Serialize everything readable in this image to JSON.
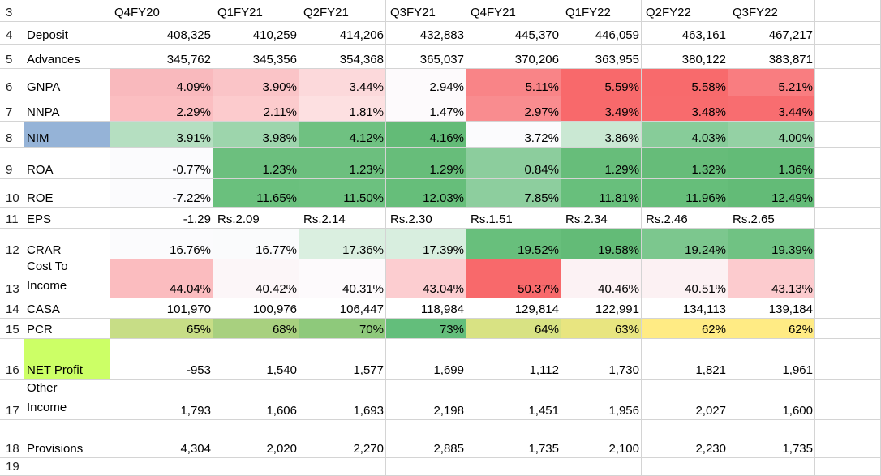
{
  "sheet": {
    "columns": [
      "Q4FY20",
      "Q1FY21",
      "Q2FY21",
      "Q3FY21",
      "Q4FY21",
      "Q1FY22",
      "Q2FY22",
      "Q3FY22"
    ],
    "header_row_number": "3",
    "last_row_number": "19",
    "rows": [
      {
        "num": "4",
        "label": "Deposit",
        "values": [
          "408,325",
          "410,259",
          "414,206",
          "432,883",
          "445,370",
          "446,059",
          "463,161",
          "467,217"
        ]
      },
      {
        "num": "5",
        "label": "Advances",
        "values": [
          "345,762",
          "345,356",
          "354,368",
          "365,037",
          "370,206",
          "363,955",
          "380,122",
          "383,871"
        ]
      },
      {
        "num": "6",
        "label": "GNPA",
        "values": [
          "4.09%",
          "3.90%",
          "3.44%",
          "2.94%",
          "5.11%",
          "5.59%",
          "5.58%",
          "5.21%"
        ],
        "colors": [
          "#f9b9bd",
          "#fac4c7",
          "#fcd9db",
          "#fdfafc",
          "#f98487",
          "#f8696b",
          "#f86a6c",
          "#f97d80"
        ]
      },
      {
        "num": "7",
        "label": "NNPA",
        "values": [
          "2.29%",
          "2.11%",
          "1.81%",
          "1.47%",
          "2.97%",
          "3.49%",
          "3.48%",
          "3.44%"
        ],
        "colors": [
          "#fbbec1",
          "#fccbcd",
          "#fde0e1",
          "#fdfafc",
          "#f98c8f",
          "#f8696b",
          "#f86b6d",
          "#f86d70"
        ]
      },
      {
        "num": "8",
        "label": "NIM",
        "label_bg": "#95b3d7",
        "values": [
          "3.91%",
          "3.98%",
          "4.12%",
          "4.16%",
          "3.72%",
          "3.86%",
          "4.03%",
          "4.00%"
        ],
        "colors": [
          "#b5dfc1",
          "#9dd5ac",
          "#6fc181",
          "#63bb77",
          "#fbfbfd",
          "#cae8d3",
          "#87cc99",
          "#94d1a4"
        ]
      },
      {
        "num": "9",
        "label": "ROA",
        "values": [
          "-0.77%",
          "1.23%",
          "1.23%",
          "1.29%",
          "0.84%",
          "1.29%",
          "1.32%",
          "1.36%"
        ],
        "colors": [
          "#fbfbfd",
          "#6cbf7e",
          "#6cbf7e",
          "#67bd7a",
          "#8ccd9d",
          "#67bd7a",
          "#66bc79",
          "#63bb77"
        ]
      },
      {
        "num": "10",
        "label": "ROE",
        "values": [
          "-7.22%",
          "11.65%",
          "11.50%",
          "12.03%",
          "7.85%",
          "11.81%",
          "11.96%",
          "12.49%"
        ],
        "colors": [
          "#fbfbfd",
          "#6ac07d",
          "#6cc17f",
          "#66be7a",
          "#8dce9e",
          "#68bf7c",
          "#66be7a",
          "#63bb77"
        ]
      },
      {
        "num": "11",
        "label": "EPS",
        "values": [
          "-1.29",
          "Rs.2.09",
          "Rs.2.14",
          "Rs.2.30",
          "Rs.1.51",
          "Rs.2.34",
          "Rs.2.46",
          "Rs.2.65"
        ]
      },
      {
        "num": "12",
        "label": "CRAR",
        "values": [
          "16.76%",
          "16.77%",
          "17.36%",
          "17.39%",
          "19.52%",
          "19.58%",
          "19.24%",
          "19.39%"
        ],
        "colors": [
          "#fbfbfd",
          "#fafbfc",
          "#daefe0",
          "#d8eedf",
          "#68bf7c",
          "#63bb77",
          "#7cc78e",
          "#70c283"
        ]
      },
      {
        "num": "13",
        "label_lines": [
          "Cost To",
          "Income"
        ],
        "values": [
          "44.04%",
          "40.42%",
          "40.31%",
          "43.04%",
          "50.37%",
          "40.46%",
          "40.51%",
          "43.13%"
        ],
        "colors": [
          "#fbbcbf",
          "#fcf6f8",
          "#fdfafc",
          "#fccdd0",
          "#f8696b",
          "#fcf2f4",
          "#fcf1f3",
          "#fccbce"
        ]
      },
      {
        "num": "14",
        "label": "CASA",
        "values": [
          "101,970",
          "100,976",
          "106,447",
          "118,984",
          "129,814",
          "122,991",
          "134,113",
          "139,184"
        ]
      },
      {
        "num": "15",
        "label": "PCR",
        "values": [
          "65%",
          "68%",
          "70%",
          "73%",
          "64%",
          "63%",
          "62%",
          "62%"
        ],
        "colors": [
          "#c7dd86",
          "#a8d07f",
          "#8ec97b",
          "#63be7b",
          "#d8e283",
          "#e8e580",
          "#ffeb84",
          "#ffeb84"
        ]
      },
      {
        "num": "16",
        "label": "NET Profit",
        "label_bg": "#ccff66",
        "values": [
          "-953",
          "1,540",
          "1,577",
          "1,699",
          "1,112",
          "1,730",
          "1,821",
          "1,961"
        ]
      },
      {
        "num": "17",
        "label_lines": [
          "Other",
          "Income"
        ],
        "values": [
          "1,793",
          "1,606",
          "1,693",
          "2,198",
          "1,451",
          "1,956",
          "2,027",
          "1,600"
        ]
      },
      {
        "num": "18",
        "label": "Provisions",
        "values": [
          "4,304",
          "2,020",
          "2,270",
          "2,885",
          "1,735",
          "2,100",
          "2,230",
          "1,735"
        ]
      }
    ]
  }
}
